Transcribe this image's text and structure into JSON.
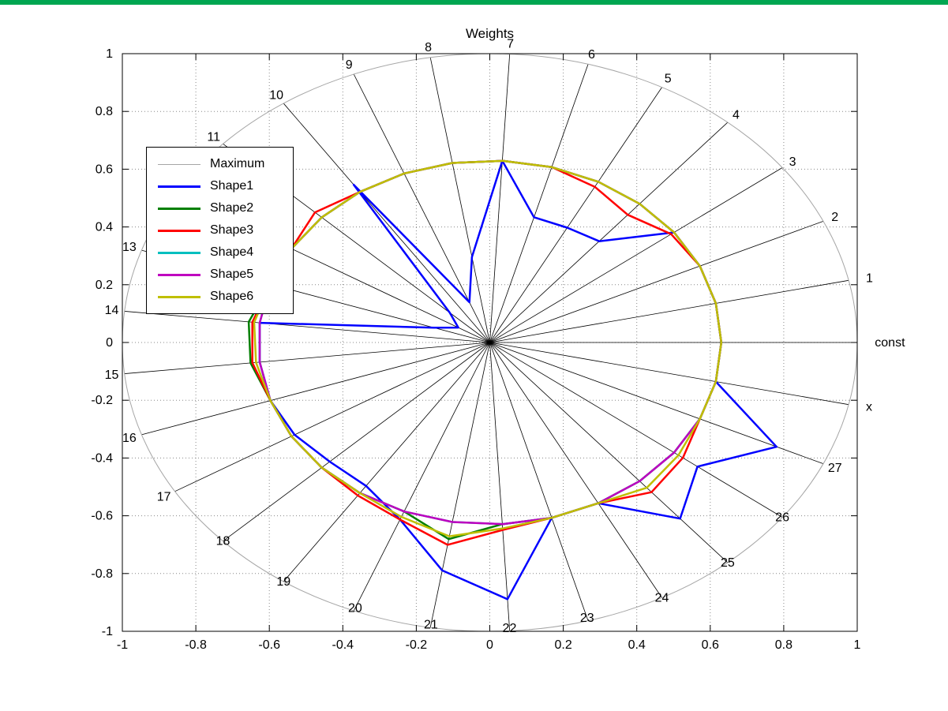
{
  "window": {
    "top_strip_color": "#00a651",
    "background": "#ffffff"
  },
  "chart_data": {
    "type": "radar",
    "title": "Weights",
    "axes": {
      "xlim": [
        -1,
        1
      ],
      "ylim": [
        -1,
        1
      ],
      "x_tick_labels": [
        "-1",
        "-0.8",
        "-0.6",
        "-0.4",
        "-0.2",
        "0",
        "0.2",
        "0.4",
        "0.6",
        "0.8",
        "1"
      ],
      "y_tick_labels": [
        "-1",
        "-0.8",
        "-0.6",
        "-0.4",
        "-0.2",
        "0",
        "0.2",
        "0.4",
        "0.6",
        "0.8",
        "1"
      ],
      "grid": "dotted",
      "box": true
    },
    "spokes": [
      "const",
      "1",
      "2",
      "3",
      "4",
      "5",
      "6",
      "7",
      "8",
      "9",
      "10",
      "11",
      "12",
      "13",
      "14",
      "15",
      "16",
      "17",
      "18",
      "19",
      "20",
      "21",
      "22",
      "23",
      "24",
      "25",
      "26",
      "27",
      "x"
    ],
    "maximum": {
      "label": "Maximum",
      "radius": 1.0,
      "color": "#a6a6a6",
      "line_width": 1
    },
    "series": [
      {
        "name": "Shape1",
        "color": "#0000ff",
        "line_width": 2.5,
        "values": [
          0.63,
          0.63,
          0.63,
          0.63,
          0.46,
          0.45,
          0.45,
          0.63,
          0.3,
          0.15,
          0.66,
          0.15,
          0.1,
          0.16,
          0.63,
          0.63,
          0.63,
          0.62,
          0.6,
          0.6,
          0.66,
          0.8,
          0.89,
          0.63,
          0.63,
          0.8,
          0.71,
          0.86,
          0.63
        ]
      },
      {
        "name": "Shape2",
        "color": "#007f00",
        "line_width": 2.5,
        "values": [
          0.63,
          0.63,
          0.63,
          0.63,
          0.63,
          0.63,
          0.63,
          0.63,
          0.63,
          0.63,
          0.63,
          0.63,
          0.63,
          0.63,
          0.66,
          0.655,
          0.63,
          0.63,
          0.63,
          0.63,
          0.63,
          0.69,
          0.63,
          0.63,
          0.63,
          0.63,
          0.63,
          0.63,
          0.63
        ]
      },
      {
        "name": "Shape3",
        "color": "#ff0000",
        "line_width": 2.5,
        "values": [
          0.63,
          0.63,
          0.63,
          0.62,
          0.58,
          0.61,
          0.63,
          0.63,
          0.63,
          0.63,
          0.63,
          0.655,
          0.63,
          0.63,
          0.65,
          0.65,
          0.63,
          0.63,
          0.63,
          0.64,
          0.66,
          0.71,
          0.65,
          0.63,
          0.63,
          0.68,
          0.66,
          0.63,
          0.63
        ]
      },
      {
        "name": "Shape4",
        "color": "#00bfbf",
        "line_width": 2.5,
        "values": [
          0.63,
          0.63,
          0.63,
          0.63,
          0.63,
          0.63,
          0.63,
          0.63,
          0.63,
          0.63,
          0.63,
          0.63,
          0.63,
          0.63,
          0.63,
          0.63,
          0.63,
          0.63,
          0.63,
          0.63,
          0.63,
          0.63,
          0.63,
          0.63,
          0.63,
          0.63,
          0.63,
          0.63,
          0.63
        ]
      },
      {
        "name": "Shape5",
        "color": "#bf00bf",
        "line_width": 2.5,
        "values": [
          0.63,
          0.63,
          0.63,
          0.63,
          0.63,
          0.63,
          0.63,
          0.63,
          0.63,
          0.63,
          0.63,
          0.63,
          0.63,
          0.63,
          0.63,
          0.63,
          0.63,
          0.63,
          0.63,
          0.63,
          0.63,
          0.63,
          0.63,
          0.63,
          0.63,
          0.63,
          0.63,
          0.63,
          0.63
        ]
      },
      {
        "name": "Shape6",
        "color": "#bfbf00",
        "line_width": 2.5,
        "values": [
          0.63,
          0.63,
          0.63,
          0.63,
          0.63,
          0.63,
          0.63,
          0.63,
          0.63,
          0.63,
          0.63,
          0.63,
          0.63,
          0.63,
          0.645,
          0.64,
          0.63,
          0.63,
          0.63,
          0.63,
          0.65,
          0.68,
          0.645,
          0.63,
          0.63,
          0.66,
          0.645,
          0.63,
          0.63
        ]
      }
    ],
    "legend": {
      "position": "upper-left",
      "entries": [
        "Maximum",
        "Shape1",
        "Shape2",
        "Shape3",
        "Shape4",
        "Shape5",
        "Shape6"
      ]
    }
  }
}
